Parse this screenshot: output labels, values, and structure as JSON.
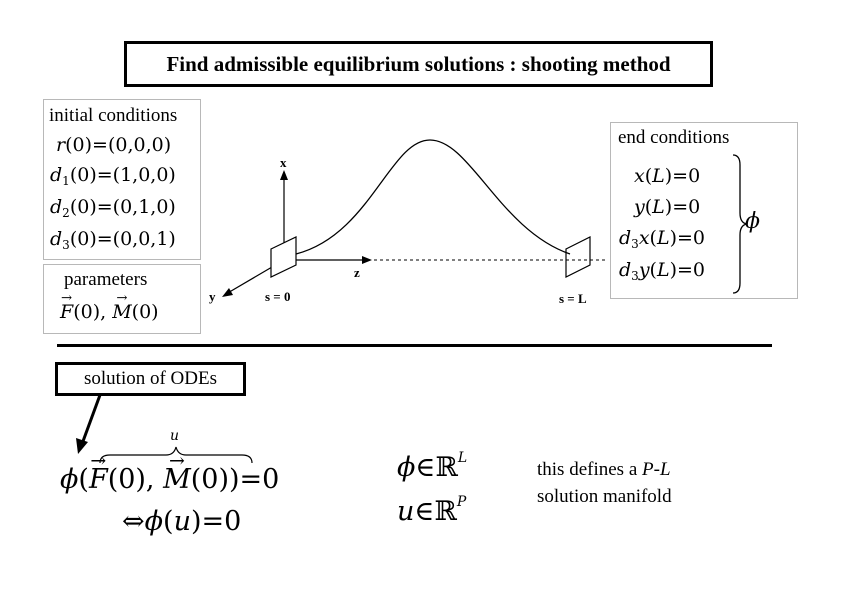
{
  "title": "Find admissible equilibrium solutions : shooting method",
  "initial": {
    "heading": "initial conditions",
    "r0": "(0,0,0)",
    "d1": "(1,0,0)",
    "d2": "(0,1,0)",
    "d3": "(0,0,1)"
  },
  "parameters": {
    "heading": "parameters"
  },
  "end": {
    "heading": "end conditions",
    "phi": "ϕ"
  },
  "diagram": {
    "axis_x": "x",
    "axis_y": "y",
    "axis_z": "z",
    "s0": "s = 0",
    "sL": "s = L"
  },
  "ode": {
    "label": "solution of ODEs",
    "brace_u": "u"
  },
  "spaces": {
    "dim_L": "L",
    "dim_P": "P"
  },
  "manifold": {
    "line1_prefix": "this defines a ",
    "line1_P": "P",
    "line1_dash": "-",
    "line1_L": "L",
    "line2": "solution manifold"
  }
}
